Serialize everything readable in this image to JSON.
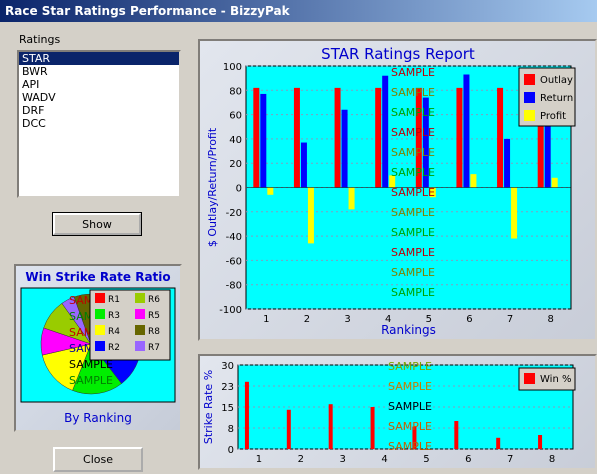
{
  "window": {
    "title": "Race Star Ratings Performance - BizzyPak"
  },
  "ratings": {
    "label": "Ratings",
    "items": [
      "STAR",
      "BWR",
      "API",
      "WADV",
      "DRF",
      "DCC"
    ],
    "selected_index": 0
  },
  "buttons": {
    "show": "Show",
    "close": "Close"
  },
  "watermark": "SAMPLE",
  "colors": {
    "outlay": "#ff0000",
    "return": "#0000ff",
    "profit": "#ffff00",
    "plot_bg": "#00ffff",
    "title": "#0000cc"
  },
  "chart_data": [
    {
      "type": "bar",
      "title": "STAR Ratings Report",
      "xlabel": "Rankings",
      "ylabel": "$ Outlay/Return/Profit",
      "categories": [
        "1",
        "2",
        "3",
        "4",
        "5",
        "6",
        "7",
        "8"
      ],
      "ylim": [
        -100,
        100
      ],
      "yticks": [
        "100",
        "80",
        "60",
        "40",
        "20",
        "0",
        "-20",
        "-40",
        "-60",
        "-80",
        "-100"
      ],
      "series": [
        {
          "name": "Outlay",
          "values": [
            82,
            82,
            82,
            82,
            82,
            82,
            82,
            82
          ]
        },
        {
          "name": "Return",
          "values": [
            77,
            37,
            64,
            92,
            74,
            93,
            40,
            90
          ]
        },
        {
          "name": "Profit",
          "values": [
            -6,
            -46,
            -18,
            10,
            -8,
            11,
            -42,
            8
          ]
        }
      ],
      "legend": "top-right",
      "grid": true
    },
    {
      "type": "bar",
      "ylabel": "Strike Rate %",
      "categories": [
        "1",
        "2",
        "3",
        "4",
        "5",
        "6",
        "7",
        "8"
      ],
      "ylim": [
        0,
        30
      ],
      "yticks": [
        "30",
        "23",
        "15",
        "8",
        "0"
      ],
      "series": [
        {
          "name": "Win %",
          "values": [
            24,
            14,
            16,
            15,
            8,
            10,
            4,
            5
          ]
        }
      ],
      "legend": "top-right",
      "grid": true
    },
    {
      "type": "pie",
      "title": "Win Strike Rate Ratio",
      "xlabel": "By Ranking",
      "labels": [
        "R1",
        "R2",
        "R3",
        "R4",
        "R5",
        "R6",
        "R7",
        "R8"
      ],
      "values": [
        23,
        13,
        15,
        14,
        8,
        9,
        4,
        5
      ],
      "colors": [
        "#ff0000",
        "#0000ff",
        "#00ee00",
        "#ffff00",
        "#ff00ff",
        "#99cc00",
        "#9966ff",
        "#666600"
      ],
      "legend": "right"
    }
  ]
}
